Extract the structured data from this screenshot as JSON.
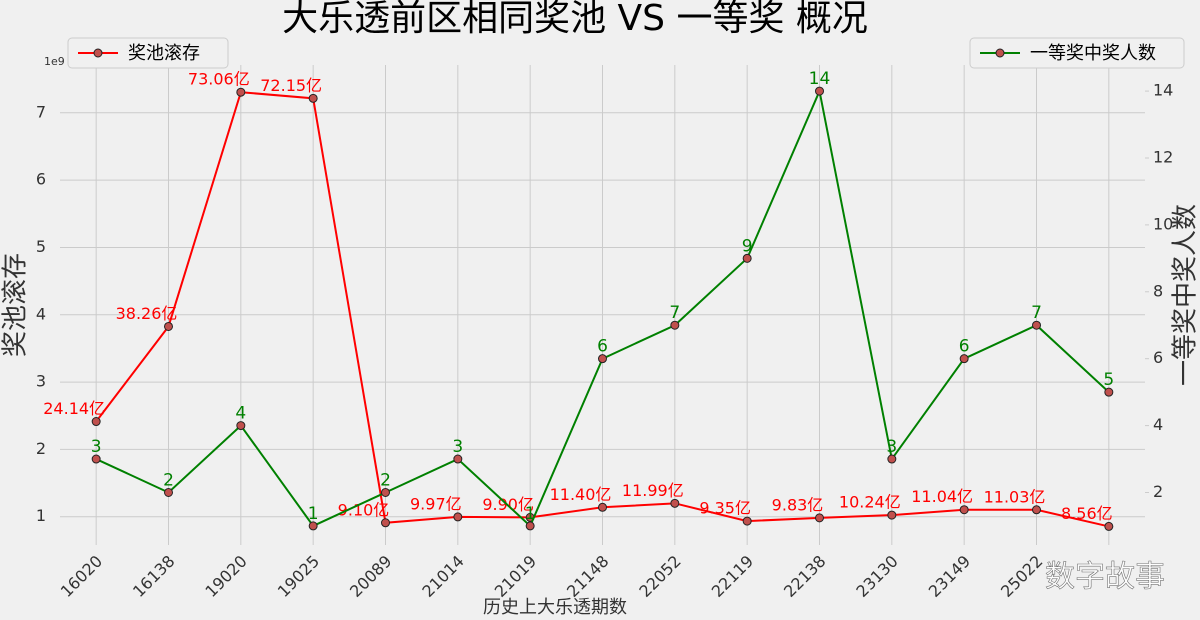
{
  "chart_data": {
    "type": "line",
    "title": "大乐透前区相同奖池 VS 一等奖 概况",
    "xlabel": "历史上大乐透期数",
    "ylabel": "奖池滚存",
    "y2label": "一等奖中奖人数",
    "y_offset_label": "1e9",
    "watermark": "数字故事",
    "categories": [
      "16020",
      "16138",
      "19020",
      "19025",
      "20089",
      "21014",
      "21019",
      "21148",
      "22052",
      "22119",
      "22138",
      "23130",
      "23149",
      "25022",
      null
    ],
    "series": [
      {
        "name": "奖池滚存",
        "color": "#ff0000",
        "axis": "y",
        "values": [
          2.414,
          3.826,
          7.306,
          7.215,
          0.91,
          0.997,
          0.99,
          1.14,
          1.199,
          0.935,
          0.983,
          1.024,
          1.104,
          1.103,
          0.856
        ],
        "value_labels": [
          "24.14亿",
          "38.26亿",
          "73.06亿",
          "72.15亿",
          "9.10亿",
          "9.97亿",
          "9.90亿",
          "11.40亿",
          "11.99亿",
          "9.35亿",
          "9.83亿",
          "10.24亿",
          "11.04亿",
          "11.03亿",
          "8.56亿"
        ]
      },
      {
        "name": "一等奖中奖人数",
        "color": "#008000",
        "axis": "y2",
        "values": [
          3,
          2,
          4,
          1,
          2,
          3,
          1,
          6,
          7,
          9,
          14,
          3,
          6,
          7,
          5
        ]
      }
    ],
    "ylim": [
      0.58,
      7.71
    ],
    "yticks": [
      1,
      2,
      3,
      4,
      5,
      6,
      7
    ],
    "y2lim": [
      0.43,
      14.78
    ],
    "y2ticks": [
      2,
      4,
      6,
      8,
      10,
      12,
      14
    ],
    "grid": true,
    "legend": {
      "series0": "upper left",
      "series1": "upper right"
    }
  }
}
